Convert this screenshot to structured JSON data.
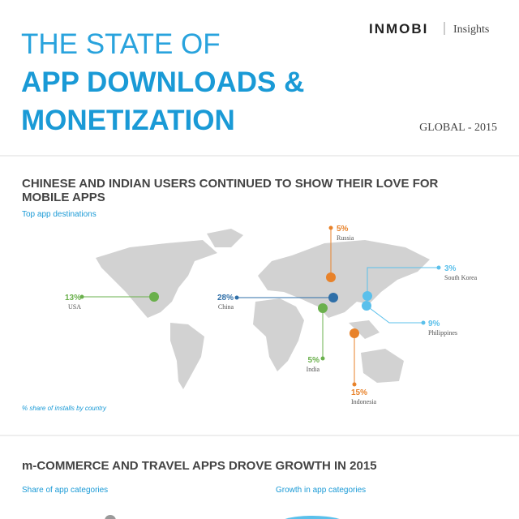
{
  "header": {
    "title_line1": "THE STATE OF",
    "title_line2": "APP DOWNLOADS &",
    "title_line3": "MONETIZATION",
    "brand": "INMOBI",
    "brand_section": "Insights",
    "scope": "GLOBAL - 2015"
  },
  "section1": {
    "heading_line1": "CHINESE AND INDIAN USERS CONTINUED TO SHOW THEIR LOVE FOR",
    "heading_line2": "MOBILE APPS",
    "subtitle": "Top app destinations",
    "footnote": "% share of installs by country",
    "callouts": [
      {
        "share": "13%",
        "country": "USA"
      },
      {
        "share": "28%",
        "country": "China"
      },
      {
        "share": "5%",
        "country": "India"
      },
      {
        "share": "5%",
        "country": "Russia"
      },
      {
        "share": "3%",
        "country": "South Korea"
      },
      {
        "share": "9%",
        "country": "Philippines"
      },
      {
        "share": "15%",
        "country": "Indonesia"
      }
    ]
  },
  "section2": {
    "heading": "m-COMMERCE AND TRAVEL APPS DROVE GROWTH IN 2015",
    "left_subtitle": "Share of app categories",
    "right_subtitle": "Growth in app categories"
  }
}
